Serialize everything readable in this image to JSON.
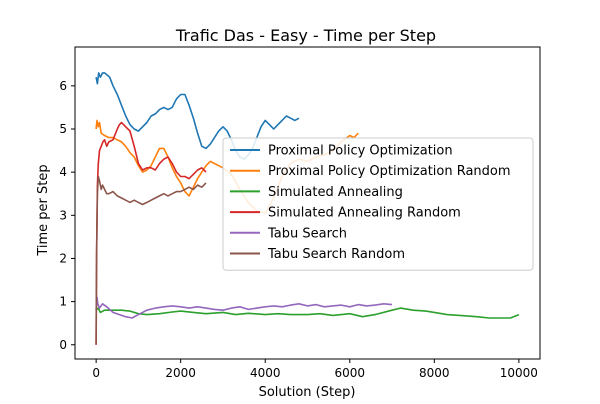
{
  "chart_data": {
    "type": "line",
    "title": "Trafic Das - Easy - Time per Step",
    "xlabel": "Solution (Step)",
    "ylabel": "Time per Step",
    "xlim": [
      -500,
      10500
    ],
    "ylim": [
      -0.33,
      6.9
    ],
    "xticks": [
      0,
      2000,
      4000,
      6000,
      8000,
      10000
    ],
    "xtick_labels": [
      "0",
      "2000",
      "4000",
      "6000",
      "8000",
      "10000"
    ],
    "yticks": [
      0,
      1,
      2,
      3,
      4,
      5,
      6
    ],
    "ytick_labels": [
      "0",
      "1",
      "2",
      "3",
      "4",
      "5",
      "6"
    ],
    "grid": false,
    "legend_position": "center-right",
    "series": [
      {
        "name": "Proximal Policy Optimization",
        "color": "#1f77b4",
        "x": [
          0,
          30,
          60,
          100,
          150,
          200,
          260,
          320,
          400,
          500,
          600,
          700,
          800,
          900,
          1000,
          1100,
          1200,
          1300,
          1400,
          1500,
          1600,
          1700,
          1800,
          1900,
          2000,
          2100,
          2200,
          2300,
          2400,
          2500,
          2600,
          2700,
          2800,
          2900,
          3000,
          3100,
          3200,
          3300,
          3400,
          3500,
          3600,
          3700,
          3800,
          3900,
          4000,
          4100,
          4200,
          4300,
          4400,
          4500,
          4600,
          4700,
          4800
        ],
        "y": [
          6.2,
          6.05,
          6.3,
          6.2,
          6.3,
          6.3,
          6.25,
          6.2,
          6.0,
          5.8,
          5.55,
          5.3,
          5.1,
          5.0,
          4.95,
          5.05,
          5.15,
          5.3,
          5.35,
          5.45,
          5.5,
          5.45,
          5.5,
          5.7,
          5.8,
          5.8,
          5.55,
          5.25,
          4.9,
          4.6,
          4.55,
          4.65,
          4.8,
          4.95,
          5.05,
          4.95,
          4.75,
          4.5,
          4.35,
          4.3,
          4.4,
          4.55,
          4.8,
          5.05,
          5.2,
          5.1,
          5.0,
          5.1,
          5.2,
          5.3,
          5.25,
          5.2,
          5.25
        ]
      },
      {
        "name": "Proximal Policy Optimization Random",
        "color": "#ff7f0e",
        "x": [
          0,
          20,
          50,
          80,
          120,
          200,
          300,
          400,
          500,
          600,
          700,
          800,
          900,
          1000,
          1100,
          1200,
          1300,
          1400,
          1500,
          1600,
          1700,
          1800,
          1900,
          2000,
          2100,
          2200,
          2300,
          2400,
          2500,
          2600,
          2700,
          2800,
          2900,
          3000,
          3200,
          3400,
          3600,
          3800,
          4000,
          4200,
          4400,
          4600,
          4800,
          5000,
          5200,
          5400,
          5600,
          5800,
          6000,
          6100,
          6200
        ],
        "y": [
          5.0,
          5.2,
          5.05,
          5.15,
          4.9,
          4.85,
          4.8,
          4.8,
          4.75,
          4.7,
          4.6,
          4.45,
          4.35,
          4.15,
          4.0,
          4.05,
          4.15,
          4.35,
          4.55,
          4.55,
          4.35,
          4.1,
          3.9,
          3.75,
          3.55,
          3.45,
          3.65,
          3.85,
          4.0,
          4.15,
          4.25,
          4.2,
          4.15,
          4.1,
          3.95,
          3.6,
          3.3,
          3.1,
          3.05,
          3.4,
          3.9,
          4.2,
          4.3,
          4.25,
          4.35,
          4.4,
          4.5,
          4.7,
          4.85,
          4.8,
          4.9
        ]
      },
      {
        "name": "Simulated Annealing",
        "color": "#2ca02c",
        "x": [
          0,
          50,
          100,
          200,
          400,
          600,
          800,
          1000,
          1200,
          1500,
          1800,
          2000,
          2300,
          2600,
          3000,
          3300,
          3600,
          4000,
          4300,
          4600,
          5000,
          5300,
          5600,
          6000,
          6300,
          6600,
          7000,
          7200,
          7500,
          7800,
          8000,
          8300,
          8600,
          9000,
          9300,
          9600,
          9800,
          10000
        ],
        "y": [
          0.8,
          0.85,
          0.75,
          0.8,
          0.8,
          0.8,
          0.78,
          0.72,
          0.7,
          0.72,
          0.76,
          0.78,
          0.75,
          0.72,
          0.75,
          0.7,
          0.73,
          0.7,
          0.72,
          0.7,
          0.7,
          0.72,
          0.68,
          0.72,
          0.65,
          0.7,
          0.8,
          0.85,
          0.8,
          0.78,
          0.75,
          0.7,
          0.68,
          0.65,
          0.62,
          0.62,
          0.62,
          0.7
        ]
      },
      {
        "name": "Simulated Annealing Random",
        "color": "#d62728",
        "x": [
          0,
          10,
          30,
          50,
          80,
          120,
          160,
          200,
          250,
          300,
          400,
          500,
          550,
          600,
          700,
          800,
          900,
          1000,
          1100,
          1200,
          1300,
          1400,
          1500,
          1600,
          1700,
          1800,
          1900,
          2000,
          2100,
          2200,
          2300,
          2400,
          2500,
          2600
        ],
        "y": [
          0.0,
          2.0,
          3.7,
          4.2,
          4.5,
          4.6,
          4.7,
          4.75,
          4.6,
          4.7,
          4.75,
          5.0,
          5.1,
          5.15,
          5.05,
          4.95,
          4.6,
          4.2,
          4.05,
          4.1,
          4.1,
          4.05,
          4.2,
          4.3,
          4.35,
          4.2,
          4.0,
          3.9,
          3.9,
          3.85,
          3.95,
          4.05,
          4.1,
          4.0
        ]
      },
      {
        "name": "Tabu Search",
        "color": "#9467bd",
        "x": [
          0,
          20,
          40,
          80,
          150,
          250,
          400,
          550,
          700,
          850,
          1000,
          1200,
          1400,
          1600,
          1800,
          2000,
          2200,
          2400,
          2600,
          2800,
          3000,
          3200,
          3400,
          3600,
          3800,
          4000,
          4200,
          4400,
          4600,
          4800,
          5000,
          5200,
          5400,
          5600,
          5800,
          6000,
          6200,
          6400,
          6600,
          6800,
          7000
        ],
        "y": [
          0.8,
          1.1,
          0.95,
          0.85,
          0.95,
          0.88,
          0.75,
          0.7,
          0.65,
          0.62,
          0.7,
          0.8,
          0.85,
          0.88,
          0.9,
          0.88,
          0.85,
          0.88,
          0.85,
          0.82,
          0.8,
          0.85,
          0.88,
          0.82,
          0.85,
          0.88,
          0.9,
          0.88,
          0.92,
          0.95,
          0.9,
          0.93,
          0.88,
          0.9,
          0.92,
          0.88,
          0.93,
          0.9,
          0.92,
          0.95,
          0.93
        ]
      },
      {
        "name": "Tabu Search Random",
        "color": "#8c564b",
        "x": [
          0,
          10,
          30,
          50,
          80,
          120,
          150,
          200,
          250,
          300,
          400,
          500,
          600,
          700,
          800,
          900,
          1000,
          1100,
          1200,
          1300,
          1400,
          1500,
          1600,
          1700,
          1800,
          1900,
          2000,
          2100,
          2200,
          2300,
          2400,
          2500,
          2600
        ],
        "y": [
          0.0,
          2.2,
          3.5,
          3.9,
          3.8,
          3.6,
          3.7,
          3.6,
          3.5,
          3.5,
          3.55,
          3.45,
          3.4,
          3.35,
          3.3,
          3.35,
          3.3,
          3.25,
          3.3,
          3.35,
          3.4,
          3.45,
          3.5,
          3.45,
          3.5,
          3.55,
          3.55,
          3.6,
          3.65,
          3.6,
          3.7,
          3.65,
          3.75
        ]
      }
    ]
  }
}
